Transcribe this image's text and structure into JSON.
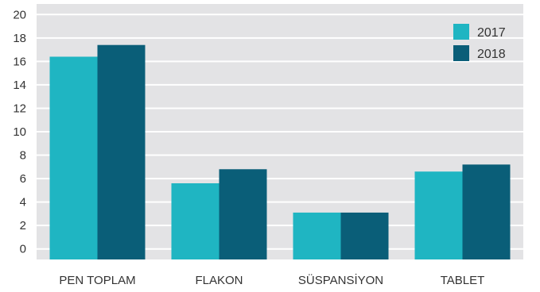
{
  "chart_data": {
    "type": "bar",
    "categories": [
      "PEN TOPLAM",
      "FLAKON",
      "SÜSPANSİYON",
      "TABLET"
    ],
    "series": [
      {
        "name": "2017",
        "values": [
          16.4,
          5.6,
          3.1,
          6.6
        ]
      },
      {
        "name": "2018",
        "values": [
          17.4,
          6.8,
          3.1,
          7.2
        ]
      }
    ],
    "yticks": [
      0,
      2,
      4,
      6,
      8,
      10,
      12,
      14,
      16,
      18,
      20
    ],
    "ylim": [
      -0.9,
      20.9
    ],
    "grid": true,
    "legend_position": "top-right",
    "colors": {
      "plot_background": "#e3e3e5",
      "grid": "#ffffff",
      "series": [
        "#1fb5c2",
        "#0a5e78"
      ]
    }
  }
}
